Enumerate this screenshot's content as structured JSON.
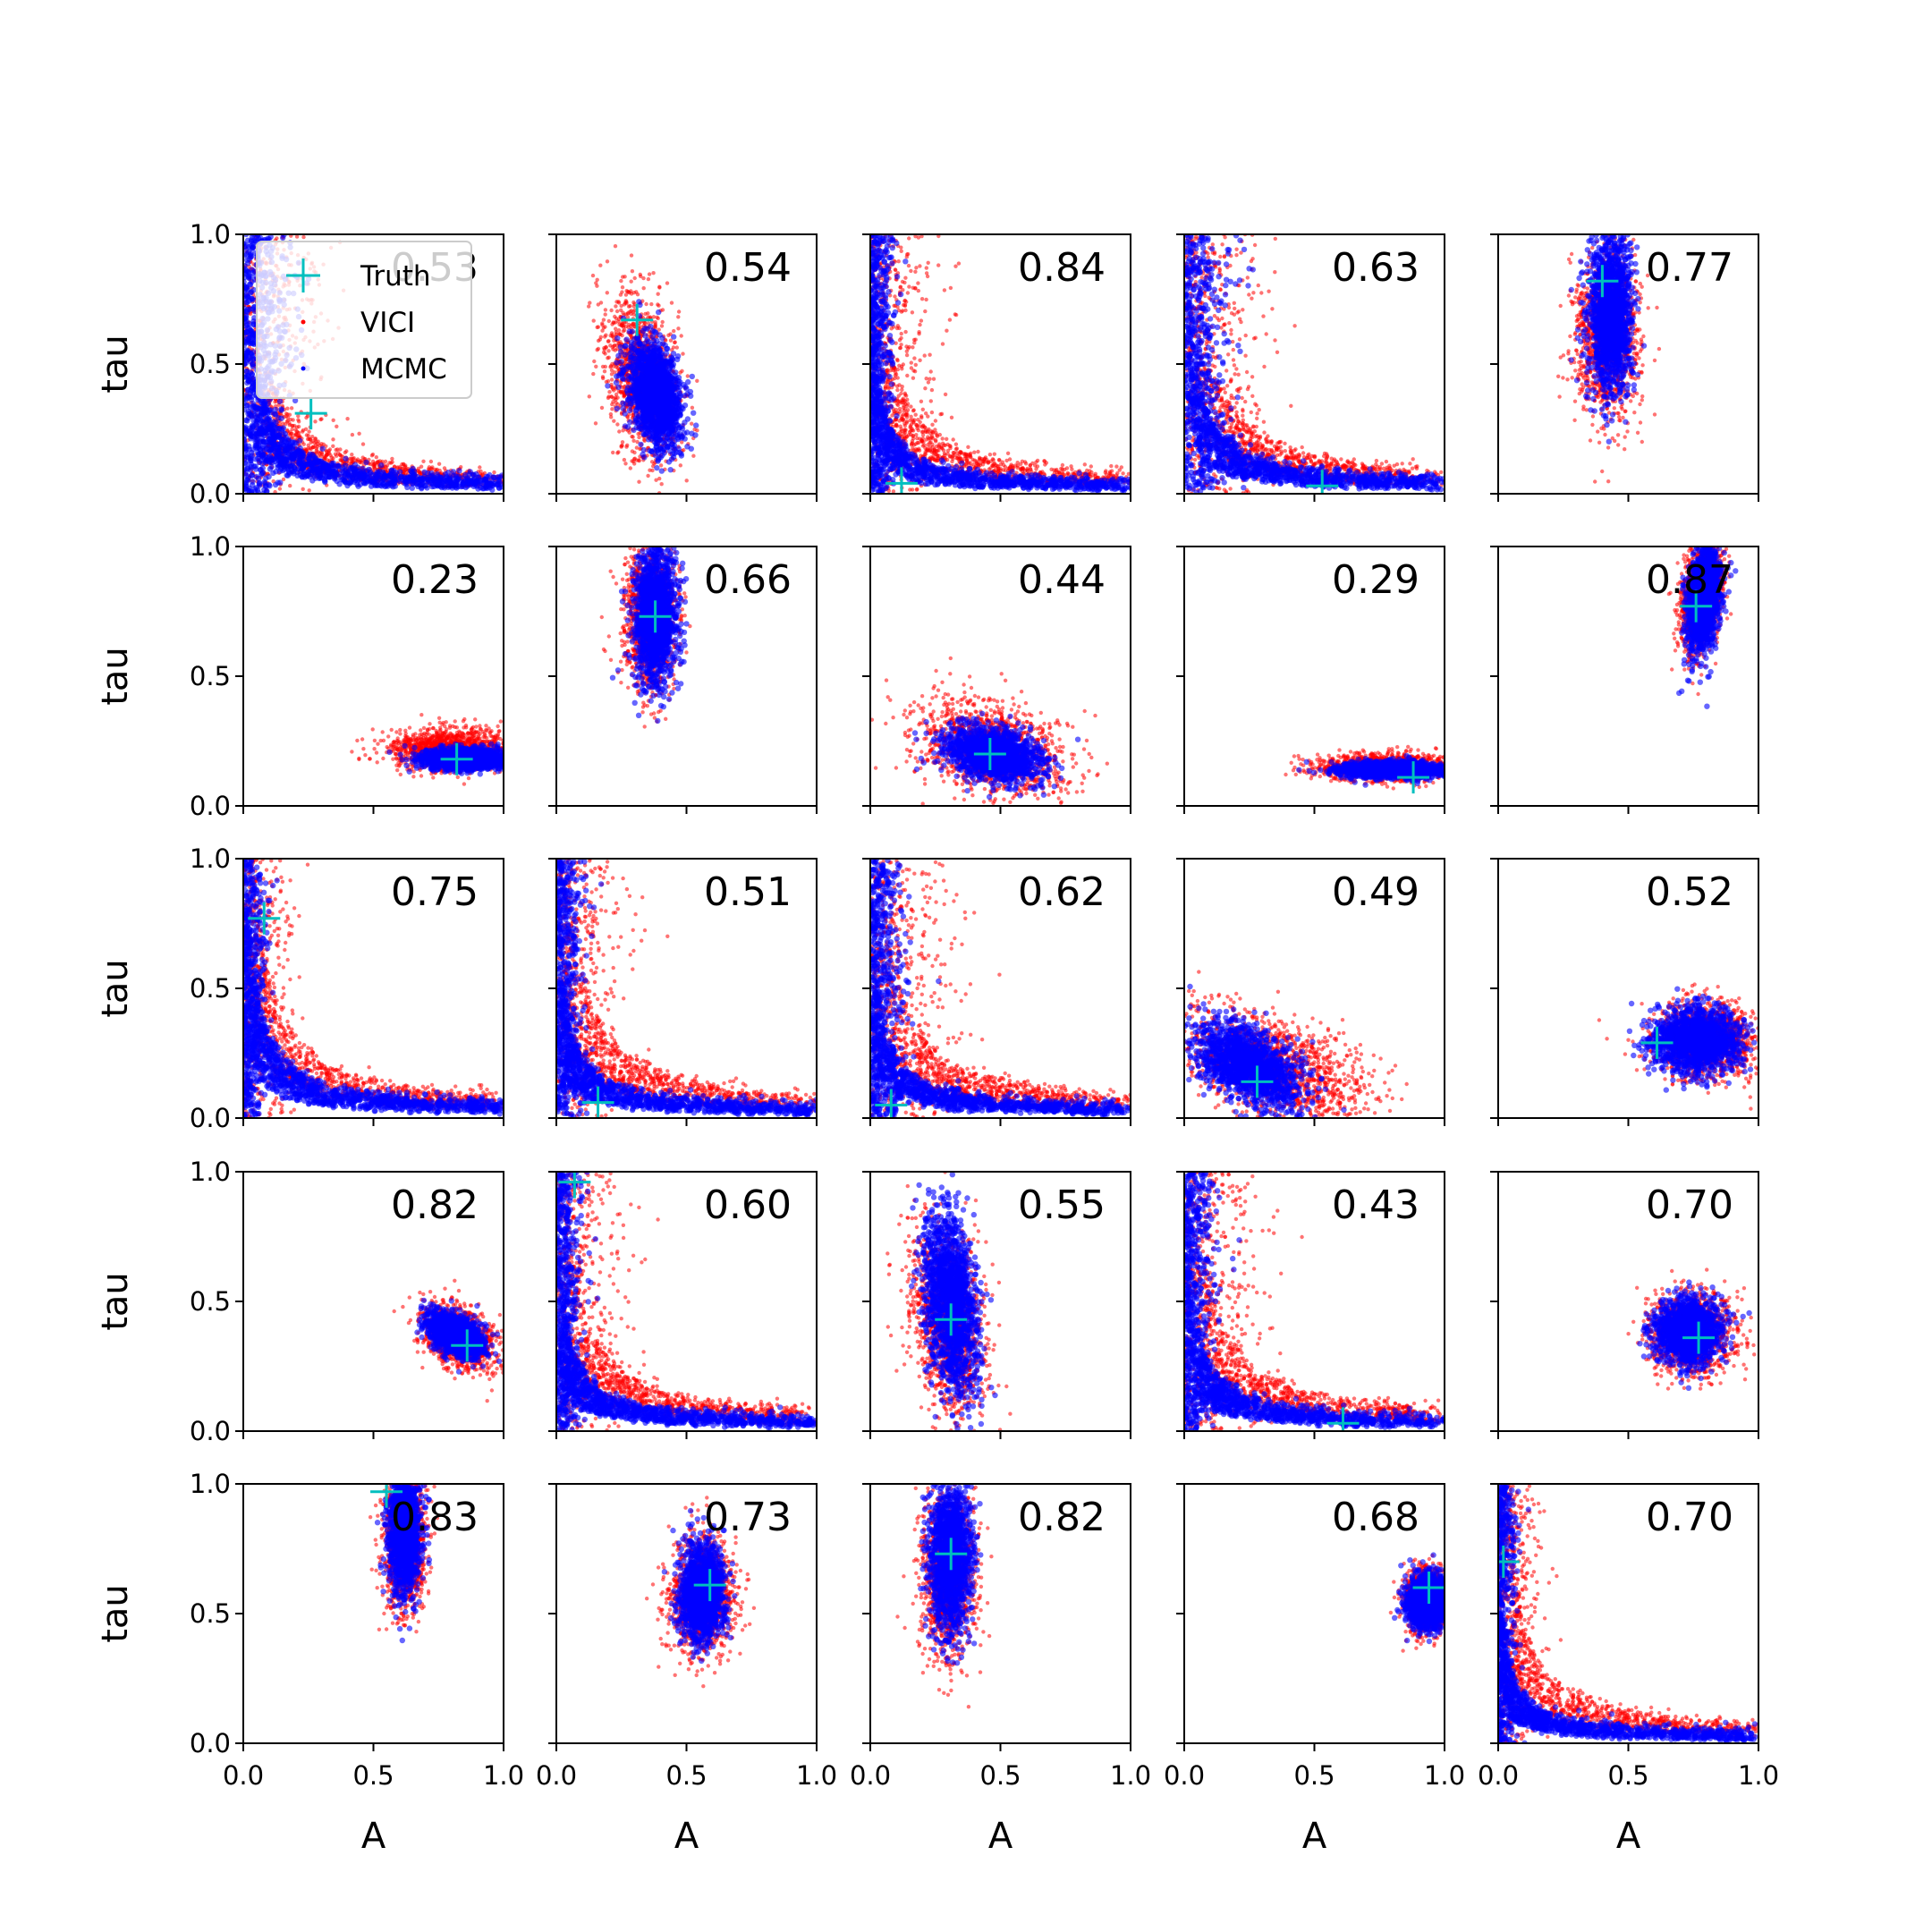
{
  "legend": {
    "entries": [
      {
        "label": "Truth",
        "marker": "plus",
        "color": "#00bfbf"
      },
      {
        "label": "VICI",
        "marker": "dot",
        "color": "#ff0000"
      },
      {
        "label": "MCMC",
        "marker": "dot",
        "color": "#0000ff"
      }
    ]
  },
  "colors": {
    "truth": "#00bfbf",
    "vici": "#ff0000",
    "mcmc": "#0000ff"
  },
  "chart_data": {
    "type": "scatter",
    "rows": 5,
    "cols": 5,
    "xlabel": "A",
    "ylabel": "tau",
    "xlim": [
      0.0,
      1.0
    ],
    "ylim": [
      0.0,
      1.0
    ],
    "xticks": [
      "0.0",
      "0.5",
      "1.0"
    ],
    "yticks": [
      "0.0",
      "0.5",
      "1.0"
    ],
    "panels": [
      {
        "score": "0.53",
        "truth": [
          0.26,
          0.31
        ],
        "shape": "L",
        "vici": {
          "cx": 0.25,
          "cy": 0.25,
          "sx": 0.2,
          "sy": 0.15,
          "rho": -0.4
        },
        "mcmc": {
          "cx": 0.12,
          "cy": 0.3,
          "sx": 0.1,
          "sy": 0.25,
          "rho": -0.5
        }
      },
      {
        "score": "0.54",
        "truth": [
          0.31,
          0.67
        ],
        "shape": "blob",
        "vici": {
          "cx": 0.33,
          "cy": 0.45,
          "sx": 0.07,
          "sy": 0.16,
          "rho": -0.3
        },
        "mcmc": {
          "cx": 0.38,
          "cy": 0.38,
          "sx": 0.05,
          "sy": 0.1,
          "rho": -0.3
        }
      },
      {
        "score": "0.84",
        "truth": [
          0.12,
          0.04
        ],
        "shape": "L",
        "vici": {
          "cx": 0.18,
          "cy": 0.35,
          "sx": 0.15,
          "sy": 0.2,
          "rho": -0.6
        },
        "mcmc": {
          "cx": 0.05,
          "cy": 0.4,
          "sx": 0.05,
          "sy": 0.3,
          "rho": -0.5
        }
      },
      {
        "score": "0.63",
        "truth": [
          0.53,
          0.03
        ],
        "shape": "L",
        "vici": {
          "cx": 0.3,
          "cy": 0.25,
          "sx": 0.18,
          "sy": 0.15,
          "rho": -0.7
        },
        "mcmc": {
          "cx": 0.12,
          "cy": 0.3,
          "sx": 0.1,
          "sy": 0.25,
          "rho": -0.5
        }
      },
      {
        "score": "0.77",
        "truth": [
          0.4,
          0.82
        ],
        "shape": "blob",
        "vici": {
          "cx": 0.42,
          "cy": 0.62,
          "sx": 0.06,
          "sy": 0.16,
          "rho": 0.0
        },
        "mcmc": {
          "cx": 0.43,
          "cy": 0.7,
          "sx": 0.04,
          "sy": 0.15,
          "rho": 0.0
        }
      },
      {
        "score": "0.23",
        "truth": [
          0.82,
          0.18
        ],
        "shape": "blob",
        "vici": {
          "cx": 0.8,
          "cy": 0.22,
          "sx": 0.12,
          "sy": 0.04,
          "rho": 0.0
        },
        "mcmc": {
          "cx": 0.85,
          "cy": 0.18,
          "sx": 0.08,
          "sy": 0.02,
          "rho": 0.0
        }
      },
      {
        "score": "0.66",
        "truth": [
          0.38,
          0.73
        ],
        "shape": "blob",
        "vici": {
          "cx": 0.36,
          "cy": 0.72,
          "sx": 0.05,
          "sy": 0.14,
          "rho": 0.0
        },
        "mcmc": {
          "cx": 0.38,
          "cy": 0.73,
          "sx": 0.04,
          "sy": 0.13,
          "rho": 0.0
        }
      },
      {
        "score": "0.44",
        "truth": [
          0.46,
          0.2
        ],
        "shape": "blob",
        "vici": {
          "cx": 0.46,
          "cy": 0.22,
          "sx": 0.14,
          "sy": 0.09,
          "rho": -0.3
        },
        "mcmc": {
          "cx": 0.47,
          "cy": 0.2,
          "sx": 0.09,
          "sy": 0.05,
          "rho": -0.3
        }
      },
      {
        "score": "0.29",
        "truth": [
          0.88,
          0.11
        ],
        "shape": "blob",
        "vici": {
          "cx": 0.77,
          "cy": 0.15,
          "sx": 0.13,
          "sy": 0.025,
          "rho": 0.0
        },
        "mcmc": {
          "cx": 0.8,
          "cy": 0.14,
          "sx": 0.1,
          "sy": 0.015,
          "rho": 0.0
        }
      },
      {
        "score": "0.87",
        "truth": [
          0.76,
          0.77
        ],
        "shape": "blob",
        "vici": {
          "cx": 0.78,
          "cy": 0.82,
          "sx": 0.04,
          "sy": 0.11,
          "rho": 0.3
        },
        "mcmc": {
          "cx": 0.79,
          "cy": 0.8,
          "sx": 0.03,
          "sy": 0.1,
          "rho": 0.3
        }
      },
      {
        "score": "0.75",
        "truth": [
          0.08,
          0.77
        ],
        "shape": "L",
        "vici": {
          "cx": 0.15,
          "cy": 0.5,
          "sx": 0.1,
          "sy": 0.28,
          "rho": -0.4
        },
        "mcmc": {
          "cx": 0.07,
          "cy": 0.55,
          "sx": 0.05,
          "sy": 0.3,
          "rho": -0.3
        }
      },
      {
        "score": "0.51",
        "truth": [
          0.16,
          0.06
        ],
        "shape": "L",
        "vici": {
          "cx": 0.25,
          "cy": 0.3,
          "sx": 0.15,
          "sy": 0.2,
          "rho": -0.6
        },
        "mcmc": {
          "cx": 0.07,
          "cy": 0.35,
          "sx": 0.06,
          "sy": 0.28,
          "rho": -0.5
        }
      },
      {
        "score": "0.62",
        "truth": [
          0.08,
          0.05
        ],
        "shape": "L",
        "vici": {
          "cx": 0.3,
          "cy": 0.25,
          "sx": 0.2,
          "sy": 0.17,
          "rho": -0.6
        },
        "mcmc": {
          "cx": 0.08,
          "cy": 0.3,
          "sx": 0.07,
          "sy": 0.25,
          "rho": -0.5
        }
      },
      {
        "score": "0.49",
        "truth": [
          0.28,
          0.14
        ],
        "shape": "blob",
        "vici": {
          "cx": 0.35,
          "cy": 0.2,
          "sx": 0.18,
          "sy": 0.11,
          "rho": -0.5
        },
        "mcmc": {
          "cx": 0.25,
          "cy": 0.2,
          "sx": 0.1,
          "sy": 0.08,
          "rho": -0.5
        }
      },
      {
        "score": "0.52",
        "truth": [
          0.61,
          0.29
        ],
        "shape": "blob",
        "vici": {
          "cx": 0.8,
          "cy": 0.3,
          "sx": 0.1,
          "sy": 0.07,
          "rho": 0.0
        },
        "mcmc": {
          "cx": 0.76,
          "cy": 0.3,
          "sx": 0.08,
          "sy": 0.06,
          "rho": 0.0
        }
      },
      {
        "score": "0.82",
        "truth": [
          0.86,
          0.33
        ],
        "shape": "blob",
        "vici": {
          "cx": 0.83,
          "cy": 0.36,
          "sx": 0.07,
          "sy": 0.06,
          "rho": -0.4
        },
        "mcmc": {
          "cx": 0.82,
          "cy": 0.37,
          "sx": 0.05,
          "sy": 0.04,
          "rho": -0.4
        }
      },
      {
        "score": "0.60",
        "truth": [
          0.07,
          0.96
        ],
        "shape": "L",
        "vici": {
          "cx": 0.22,
          "cy": 0.3,
          "sx": 0.15,
          "sy": 0.2,
          "rho": -0.6
        },
        "mcmc": {
          "cx": 0.06,
          "cy": 0.4,
          "sx": 0.06,
          "sy": 0.3,
          "rho": -0.5
        }
      },
      {
        "score": "0.55",
        "truth": [
          0.31,
          0.43
        ],
        "shape": "blob",
        "vici": {
          "cx": 0.3,
          "cy": 0.42,
          "sx": 0.07,
          "sy": 0.18,
          "rho": -0.3
        },
        "mcmc": {
          "cx": 0.31,
          "cy": 0.5,
          "sx": 0.05,
          "sy": 0.17,
          "rho": -0.3
        }
      },
      {
        "score": "0.43",
        "truth": [
          0.61,
          0.03
        ],
        "shape": "L",
        "vici": {
          "cx": 0.25,
          "cy": 0.3,
          "sx": 0.18,
          "sy": 0.2,
          "rho": -0.6
        },
        "mcmc": {
          "cx": 0.08,
          "cy": 0.35,
          "sx": 0.07,
          "sy": 0.28,
          "rho": -0.5
        }
      },
      {
        "score": "0.70",
        "truth": [
          0.77,
          0.36
        ],
        "shape": "blob",
        "vici": {
          "cx": 0.74,
          "cy": 0.38,
          "sx": 0.08,
          "sy": 0.08,
          "rho": 0.0
        },
        "mcmc": {
          "cx": 0.73,
          "cy": 0.39,
          "sx": 0.06,
          "sy": 0.06,
          "rho": 0.0
        }
      },
      {
        "score": "0.83",
        "truth": [
          0.55,
          0.97
        ],
        "shape": "blob",
        "vici": {
          "cx": 0.62,
          "cy": 0.78,
          "sx": 0.04,
          "sy": 0.13,
          "rho": 0.0
        },
        "mcmc": {
          "cx": 0.62,
          "cy": 0.82,
          "sx": 0.03,
          "sy": 0.12,
          "rho": 0.0
        }
      },
      {
        "score": "0.73",
        "truth": [
          0.59,
          0.61
        ],
        "shape": "blob",
        "vici": {
          "cx": 0.56,
          "cy": 0.57,
          "sx": 0.06,
          "sy": 0.11,
          "rho": 0.0
        },
        "mcmc": {
          "cx": 0.56,
          "cy": 0.58,
          "sx": 0.04,
          "sy": 0.09,
          "rho": 0.0
        }
      },
      {
        "score": "0.82",
        "truth": [
          0.31,
          0.73
        ],
        "shape": "blob",
        "vici": {
          "cx": 0.3,
          "cy": 0.65,
          "sx": 0.05,
          "sy": 0.16,
          "rho": 0.0
        },
        "mcmc": {
          "cx": 0.31,
          "cy": 0.72,
          "sx": 0.04,
          "sy": 0.14,
          "rho": 0.0
        }
      },
      {
        "score": "0.68",
        "truth": [
          0.94,
          0.6
        ],
        "shape": "blob",
        "vici": {
          "cx": 0.93,
          "cy": 0.55,
          "sx": 0.04,
          "sy": 0.06,
          "rho": 0.0
        },
        "mcmc": {
          "cx": 0.93,
          "cy": 0.55,
          "sx": 0.035,
          "sy": 0.05,
          "rho": 0.0
        }
      },
      {
        "score": "0.70",
        "truth": [
          0.02,
          0.7
        ],
        "shape": "L",
        "vici": {
          "cx": 0.15,
          "cy": 0.4,
          "sx": 0.1,
          "sy": 0.22,
          "rho": -0.5
        },
        "mcmc": {
          "cx": 0.05,
          "cy": 0.3,
          "sx": 0.04,
          "sy": 0.25,
          "rho": -0.4
        }
      }
    ]
  }
}
